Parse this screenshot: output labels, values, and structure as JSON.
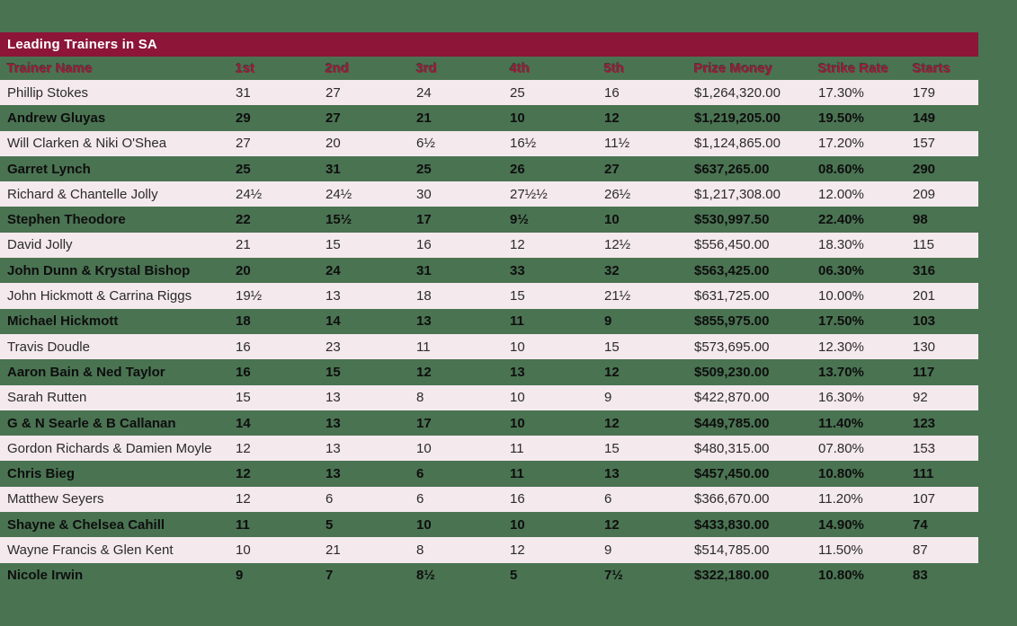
{
  "chart_data": {
    "type": "table",
    "title": "Leading Trainers in SA",
    "columns": [
      "Trainer Name",
      "1st",
      "2nd",
      "3rd",
      "4th",
      "5th",
      "Prize Money",
      "Strike Rate",
      "Starts"
    ],
    "rows": [
      [
        "Phillip Stokes",
        "31",
        "27",
        "24",
        "25",
        "16",
        "$1,264,320.00",
        "17.30%",
        "179"
      ],
      [
        "Andrew Gluyas",
        "29",
        "27",
        "21",
        "10",
        "12",
        "$1,219,205.00",
        "19.50%",
        "149"
      ],
      [
        "Will Clarken & Niki O'Shea",
        "27",
        "20",
        "6½",
        "16½",
        "11½",
        "$1,124,865.00",
        "17.20%",
        "157"
      ],
      [
        "Garret Lynch",
        "25",
        "31",
        "25",
        "26",
        "27",
        "$637,265.00",
        "08.60%",
        "290"
      ],
      [
        "Richard & Chantelle Jolly",
        "24½",
        "24½",
        "30",
        "27½½",
        "26½",
        "$1,217,308.00",
        "12.00%",
        "209"
      ],
      [
        "Stephen Theodore",
        "22",
        "15½",
        "17",
        "9½",
        "10",
        "$530,997.50",
        "22.40%",
        "98"
      ],
      [
        "David Jolly",
        "21",
        "15",
        "16",
        "12",
        "12½",
        "$556,450.00",
        "18.30%",
        "115"
      ],
      [
        "John Dunn & Krystal Bishop",
        "20",
        "24",
        "31",
        "33",
        "32",
        "$563,425.00",
        "06.30%",
        "316"
      ],
      [
        "John Hickmott & Carrina Riggs",
        "19½",
        "13",
        "18",
        "15",
        "21½",
        "$631,725.00",
        "10.00%",
        "201"
      ],
      [
        "Michael Hickmott",
        "18",
        "14",
        "13",
        "11",
        "9",
        "$855,975.00",
        "17.50%",
        "103"
      ],
      [
        "Travis Doudle",
        "16",
        "23",
        "11",
        "10",
        "15",
        "$573,695.00",
        "12.30%",
        "130"
      ],
      [
        "Aaron Bain & Ned Taylor",
        "16",
        "15",
        "12",
        "13",
        "12",
        "$509,230.00",
        "13.70%",
        "117"
      ],
      [
        "Sarah Rutten",
        "15",
        "13",
        "8",
        "10",
        "9",
        "$422,870.00",
        "16.30%",
        "92"
      ],
      [
        "G & N Searle & B Callanan",
        "14",
        "13",
        "17",
        "10",
        "12",
        "$449,785.00",
        "11.40%",
        "123"
      ],
      [
        "Gordon Richards & Damien Moyle",
        "12",
        "13",
        "10",
        "11",
        "15",
        "$480,315.00",
        "07.80%",
        "153"
      ],
      [
        "Chris Bieg",
        "12",
        "13",
        "6",
        "11",
        "13",
        "$457,450.00",
        "10.80%",
        "111"
      ],
      [
        "Matthew Seyers",
        "12",
        "6",
        "6",
        "16",
        "6",
        "$366,670.00",
        "11.20%",
        "107"
      ],
      [
        "Shayne & Chelsea Cahill",
        "11",
        "5",
        "10",
        "10",
        "12",
        "$433,830.00",
        "14.90%",
        "74"
      ],
      [
        "Wayne Francis & Glen Kent",
        "10",
        "21",
        "8",
        "12",
        "9",
        "$514,785.00",
        "11.50%",
        "87"
      ],
      [
        "Nicole Irwin",
        "9",
        "7",
        "8½",
        "5",
        "7½",
        "$322,180.00",
        "10.80%",
        "83"
      ]
    ],
    "layout": {
      "row_striping": [
        "pink",
        "green"
      ],
      "grid": "off",
      "alignment": "left"
    }
  },
  "colors": {
    "background_green": "#4A7352",
    "maroon_bar": "#8C1538",
    "header_text_crimson": "#9E1B3C",
    "row_pink": "#F4E9ED",
    "row_text_dark": "#2B2B2B",
    "row_text_black": "#0E0E0E",
    "title_text": "#FFFFFF"
  }
}
